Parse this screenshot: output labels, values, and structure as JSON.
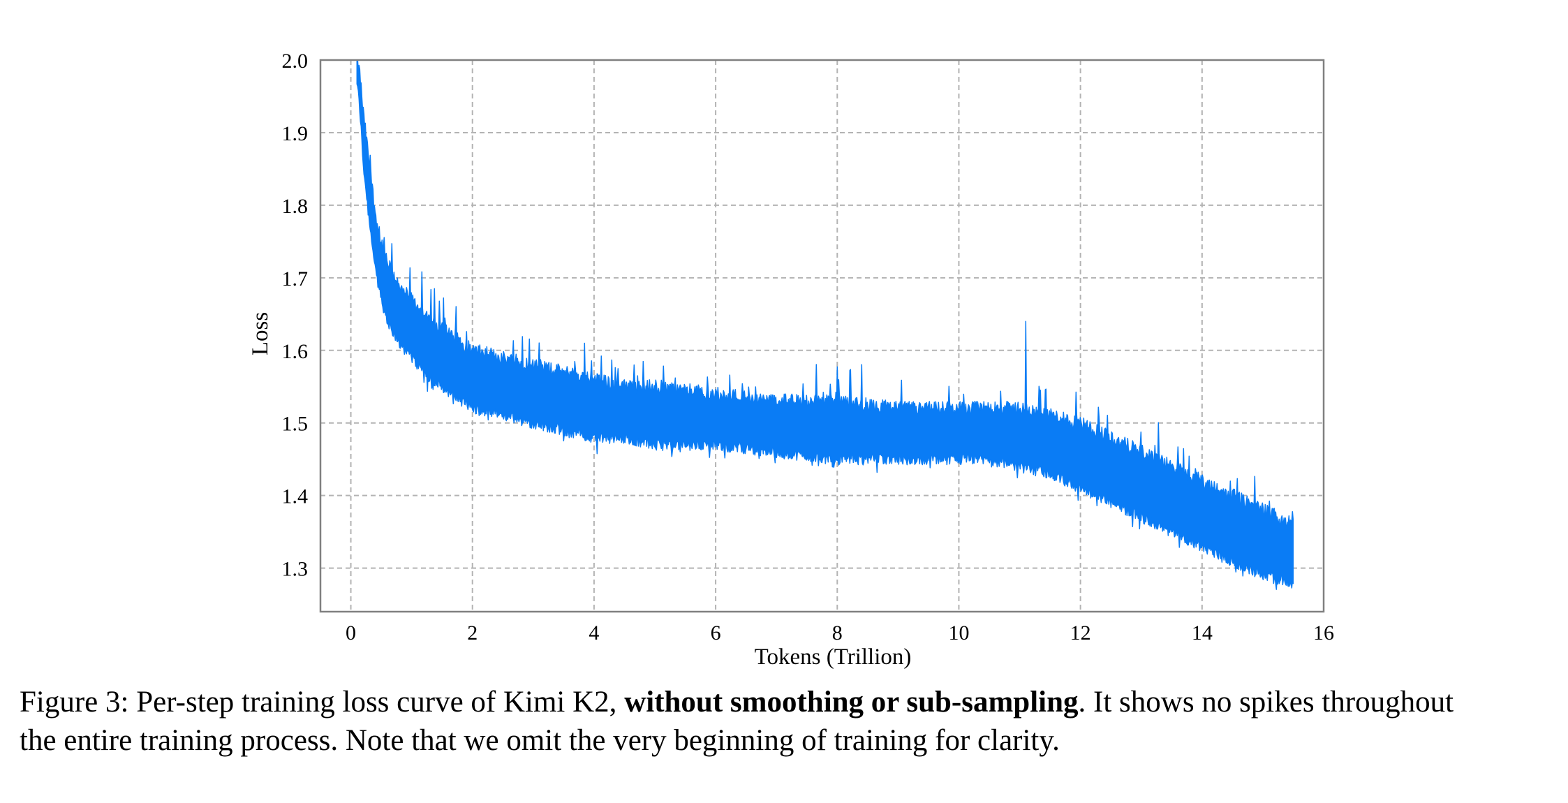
{
  "chart_data": {
    "type": "line",
    "xlabel": "Tokens (Trillion)",
    "ylabel": "Loss",
    "xlim": [
      -0.5,
      16
    ],
    "ylim": [
      1.24,
      2.0
    ],
    "xticks": [
      0,
      2,
      4,
      6,
      8,
      10,
      12,
      14,
      16
    ],
    "yticks": [
      1.3,
      1.4,
      1.5,
      1.6,
      1.7,
      1.8,
      1.9,
      2.0
    ],
    "grid": true,
    "grid_style": "dashed",
    "legend": "none",
    "line_color": "#0a7cf5",
    "series": [
      {
        "x": [
          0.1,
          0.15,
          0.2,
          0.3,
          0.4,
          0.5,
          0.6,
          0.8,
          1.0,
          1.2,
          1.5,
          2.0,
          2.5,
          3.0,
          3.5,
          4.0,
          4.5,
          5.0,
          6.0,
          7.0,
          8.0,
          9.0,
          10.0,
          10.5,
          11.0,
          11.5,
          12.0,
          12.5,
          13.0,
          13.5,
          14.0,
          14.5,
          15.0,
          15.5
        ],
        "upper": [
          2.0,
          1.98,
          1.93,
          1.86,
          1.79,
          1.75,
          1.72,
          1.69,
          1.67,
          1.65,
          1.63,
          1.6,
          1.59,
          1.58,
          1.57,
          1.56,
          1.55,
          1.55,
          1.54,
          1.53,
          1.53,
          1.52,
          1.52,
          1.52,
          1.52,
          1.51,
          1.5,
          1.48,
          1.46,
          1.44,
          1.42,
          1.4,
          1.38,
          1.36
        ],
        "lower": [
          1.97,
          1.93,
          1.86,
          1.78,
          1.71,
          1.67,
          1.64,
          1.61,
          1.59,
          1.57,
          1.55,
          1.52,
          1.51,
          1.5,
          1.49,
          1.48,
          1.48,
          1.47,
          1.47,
          1.46,
          1.45,
          1.45,
          1.45,
          1.45,
          1.44,
          1.43,
          1.41,
          1.39,
          1.37,
          1.35,
          1.33,
          1.31,
          1.29,
          1.28
        ]
      }
    ]
  },
  "caption": {
    "prefix": "Figure 3: Per-step training loss curve of Kimi K2, ",
    "bold": "without smoothing or sub-sampling",
    "rest_line1": ". It shows no spikes throughout",
    "line2": "the entire training process. Note that we omit the very beginning of training for clarity."
  }
}
